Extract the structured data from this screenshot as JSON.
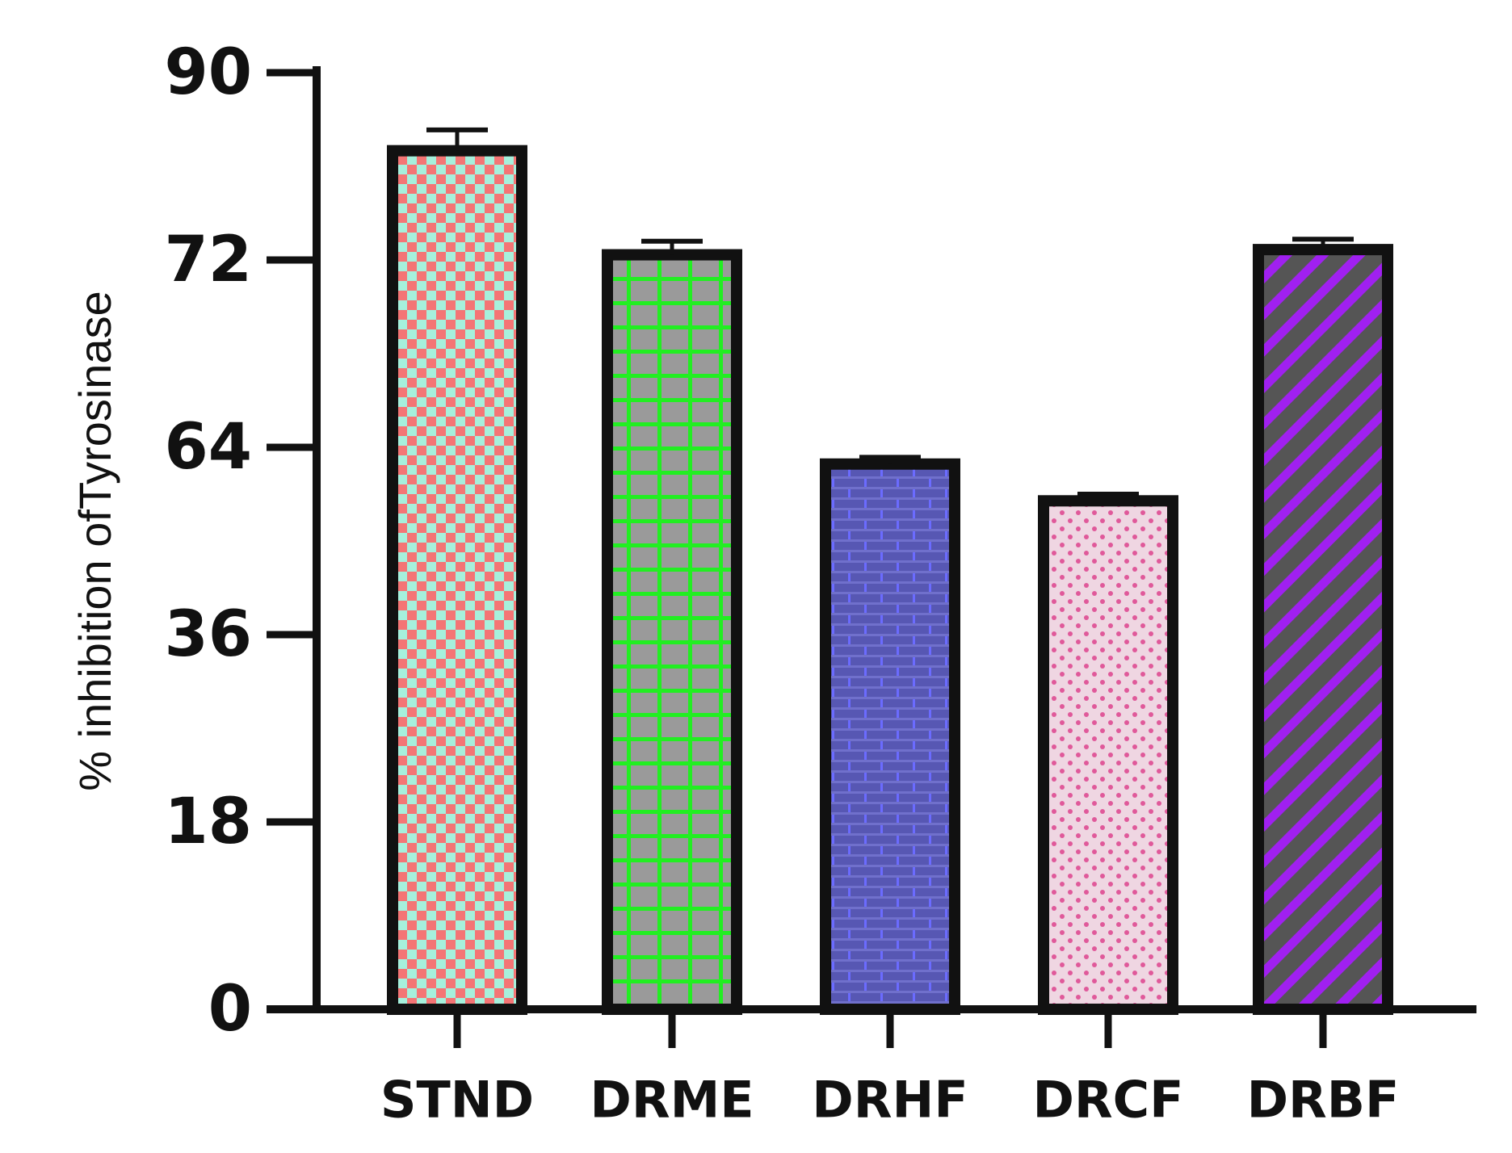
{
  "chart_data": {
    "type": "bar",
    "title": "",
    "xlabel": "",
    "ylabel": "% inhibition ofTyrosinase",
    "y_ticks": [
      "0",
      "18",
      "36",
      "64",
      "72",
      "90"
    ],
    "categories": [
      "STND",
      "DRME",
      "DRHF",
      "DRCF",
      "DRBF"
    ],
    "values": [
      82.5,
      72.5,
      61.5,
      56,
      73
    ],
    "errors": [
      2,
      1.3,
      1,
      1,
      1
    ],
    "grid": false,
    "legend": "none",
    "bar_styles": [
      {
        "pattern": "checker",
        "bg": "#f47575",
        "fg": "#a6f0dc"
      },
      {
        "pattern": "grid",
        "bg": "#9a9a9a",
        "fg": "#22ee22"
      },
      {
        "pattern": "brick",
        "bg": "#5757b3",
        "fg": "#6b6bff"
      },
      {
        "pattern": "dots",
        "bg": "#efd6e2",
        "fg": "#e0599a"
      },
      {
        "pattern": "diagonal",
        "bg": "#555555",
        "fg": "#a020f0"
      }
    ]
  }
}
